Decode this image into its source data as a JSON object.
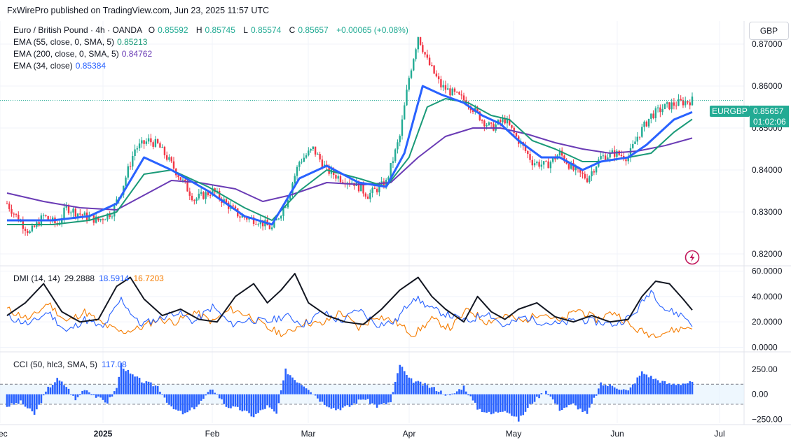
{
  "publisher": "FxWirePro published on TradingView.com, Jun 23, 2025 11:57 UTC",
  "currency": "GBP",
  "symbol_tag": "EURGBP",
  "last_price": "0.85657",
  "countdown": "01:02:06",
  "colors": {
    "up": "#22ab94",
    "down": "#f23645",
    "ema55": "#1a9a78",
    "ema200": "#6a3bb5",
    "ema34": "#2962ff",
    "adx": "#131722",
    "diplus": "#2962ff",
    "diminus": "#f57c00",
    "cci": "#2962ff",
    "grid": "#f0f3fa"
  },
  "legend": {
    "title": "Euro / British Pound · 4h · OANDA",
    "o_label": "O",
    "o": "0.85592",
    "h_label": "H",
    "h": "0.85745",
    "l_label": "L",
    "l": "0.85574",
    "c_label": "C",
    "c": "0.85657",
    "change": "+0.00065 (+0.08%)",
    "ema55_label": "EMA (55, close, 0, SMA, 5)",
    "ema55_val": "0.85213",
    "ema200_label": "EMA (200, close, 0, SMA, 5)",
    "ema200_val": "0.84762",
    "ema34_label": "EMA (34, close)",
    "ema34_val": "0.85384"
  },
  "dmi_legend": {
    "label": "DMI (14, 14)",
    "adx": "29.2888",
    "diplus": "18.5914",
    "diminus": "16.7203"
  },
  "cci_legend": {
    "label": "CCI (50, hlc3, SMA, 5)",
    "val": "117.08"
  },
  "chart_data": [
    {
      "type": "candlestick",
      "title": "Euro / British Pound · 4h · OANDA",
      "x_ticks": [
        "Dec",
        "2025",
        "Feb",
        "Mar",
        "Apr",
        "May",
        "Jun",
        "Jul"
      ],
      "y_ticks": [
        "0.87000",
        "0.86000",
        "0.85000",
        "0.84000",
        "0.83000",
        "0.82000"
      ],
      "ylim": [
        0.8175,
        0.8755
      ],
      "price_path": [
        [
          0,
          0.832
        ],
        [
          2,
          0.829
        ],
        [
          5,
          0.825
        ],
        [
          8,
          0.829
        ],
        [
          11,
          0.827
        ],
        [
          13,
          0.831
        ],
        [
          17,
          0.829
        ],
        [
          20,
          0.828
        ],
        [
          23,
          0.83
        ],
        [
          25,
          0.835
        ],
        [
          28,
          0.845
        ],
        [
          31,
          0.847
        ],
        [
          33,
          0.846
        ],
        [
          35,
          0.843
        ],
        [
          38,
          0.838
        ],
        [
          41,
          0.833
        ],
        [
          45,
          0.835
        ],
        [
          48,
          0.832
        ],
        [
          51,
          0.829
        ],
        [
          55,
          0.828
        ],
        [
          58,
          0.826
        ],
        [
          61,
          0.832
        ],
        [
          64,
          0.842
        ],
        [
          67,
          0.845
        ],
        [
          70,
          0.84
        ],
        [
          73,
          0.838
        ],
        [
          76,
          0.837
        ],
        [
          79,
          0.834
        ],
        [
          83,
          0.837
        ],
        [
          86,
          0.848
        ],
        [
          88,
          0.862
        ],
        [
          90,
          0.872
        ],
        [
          92,
          0.866
        ],
        [
          95,
          0.86
        ],
        [
          98,
          0.858
        ],
        [
          101,
          0.856
        ],
        [
          104,
          0.852
        ],
        [
          106,
          0.85
        ],
        [
          109,
          0.852
        ],
        [
          112,
          0.847
        ],
        [
          115,
          0.842
        ],
        [
          118,
          0.841
        ],
        [
          121,
          0.844
        ],
        [
          124,
          0.84
        ],
        [
          127,
          0.838
        ],
        [
          130,
          0.843
        ],
        [
          133,
          0.844
        ],
        [
          136,
          0.843
        ],
        [
          138,
          0.848
        ],
        [
          141,
          0.853
        ],
        [
          144,
          0.855
        ],
        [
          147,
          0.856
        ],
        [
          150,
          0.8566
        ]
      ],
      "ema34": [
        [
          0,
          0.828
        ],
        [
          10,
          0.828
        ],
        [
          18,
          0.829
        ],
        [
          24,
          0.832
        ],
        [
          30,
          0.843
        ],
        [
          36,
          0.84
        ],
        [
          44,
          0.835
        ],
        [
          52,
          0.829
        ],
        [
          58,
          0.827
        ],
        [
          64,
          0.838
        ],
        [
          70,
          0.841
        ],
        [
          77,
          0.837
        ],
        [
          83,
          0.836
        ],
        [
          87,
          0.844
        ],
        [
          91,
          0.86
        ],
        [
          95,
          0.858
        ],
        [
          100,
          0.856
        ],
        [
          104,
          0.853
        ],
        [
          108,
          0.851
        ],
        [
          112,
          0.847
        ],
        [
          117,
          0.843
        ],
        [
          121,
          0.843
        ],
        [
          126,
          0.84
        ],
        [
          130,
          0.842
        ],
        [
          136,
          0.843
        ],
        [
          140,
          0.846
        ],
        [
          146,
          0.852
        ],
        [
          150,
          0.8538
        ]
      ],
      "ema55": [
        [
          0,
          0.827
        ],
        [
          10,
          0.827
        ],
        [
          18,
          0.828
        ],
        [
          24,
          0.83
        ],
        [
          30,
          0.839
        ],
        [
          36,
          0.84
        ],
        [
          44,
          0.836
        ],
        [
          52,
          0.831
        ],
        [
          58,
          0.828
        ],
        [
          64,
          0.835
        ],
        [
          70,
          0.84
        ],
        [
          77,
          0.838
        ],
        [
          83,
          0.836
        ],
        [
          88,
          0.843
        ],
        [
          92,
          0.855
        ],
        [
          96,
          0.857
        ],
        [
          101,
          0.856
        ],
        [
          106,
          0.853
        ],
        [
          110,
          0.852
        ],
        [
          115,
          0.847
        ],
        [
          120,
          0.845
        ],
        [
          126,
          0.842
        ],
        [
          130,
          0.842
        ],
        [
          136,
          0.843
        ],
        [
          141,
          0.844
        ],
        [
          146,
          0.849
        ],
        [
          150,
          0.8521
        ]
      ],
      "ema200": [
        [
          0,
          0.8345
        ],
        [
          8,
          0.8325
        ],
        [
          16,
          0.831
        ],
        [
          24,
          0.8305
        ],
        [
          30,
          0.834
        ],
        [
          36,
          0.8375
        ],
        [
          42,
          0.837
        ],
        [
          50,
          0.8355
        ],
        [
          56,
          0.8325
        ],
        [
          62,
          0.834
        ],
        [
          70,
          0.837
        ],
        [
          78,
          0.8365
        ],
        [
          84,
          0.837
        ],
        [
          90,
          0.843
        ],
        [
          96,
          0.848
        ],
        [
          102,
          0.85
        ],
        [
          108,
          0.85
        ],
        [
          114,
          0.8485
        ],
        [
          120,
          0.8465
        ],
        [
          126,
          0.845
        ],
        [
          132,
          0.844
        ],
        [
          138,
          0.8445
        ],
        [
          144,
          0.8458
        ],
        [
          150,
          0.8476
        ]
      ]
    },
    {
      "type": "line",
      "title": "DMI (14, 14)",
      "y_ticks": [
        "60.0000",
        "40.0000",
        "20.0000",
        "0.0000"
      ],
      "ylim": [
        -3,
        63
      ],
      "series": [
        {
          "name": "ADX",
          "values": [
            [
              0,
              25
            ],
            [
              4,
              35
            ],
            [
              8,
              50
            ],
            [
              12,
              28
            ],
            [
              16,
              20
            ],
            [
              20,
              22
            ],
            [
              24,
              48
            ],
            [
              27,
              55
            ],
            [
              30,
              38
            ],
            [
              34,
              25
            ],
            [
              38,
              30
            ],
            [
              42,
              22
            ],
            [
              46,
              20
            ],
            [
              50,
              40
            ],
            [
              54,
              50
            ],
            [
              57,
              35
            ],
            [
              60,
              45
            ],
            [
              63,
              58
            ],
            [
              66,
              35
            ],
            [
              70,
              25
            ],
            [
              74,
              20
            ],
            [
              78,
              18
            ],
            [
              82,
              30
            ],
            [
              86,
              45
            ],
            [
              90,
              55
            ],
            [
              93,
              40
            ],
            [
              96,
              30
            ],
            [
              100,
              20
            ],
            [
              103,
              40
            ],
            [
              106,
              28
            ],
            [
              109,
              22
            ],
            [
              112,
              30
            ],
            [
              116,
              35
            ],
            [
              120,
              24
            ],
            [
              124,
              20
            ],
            [
              128,
              25
            ],
            [
              132,
              20
            ],
            [
              136,
              22
            ],
            [
              139,
              40
            ],
            [
              142,
              52
            ],
            [
              145,
              50
            ],
            [
              148,
              38
            ],
            [
              150,
              29.29
            ]
          ]
        },
        {
          "name": "DI+",
          "values": [
            [
              0,
              24
            ],
            [
              5,
              18
            ],
            [
              9,
              28
            ],
            [
              13,
              12
            ],
            [
              17,
              22
            ],
            [
              21,
              15
            ],
            [
              25,
              38
            ],
            [
              29,
              18
            ],
            [
              33,
              22
            ],
            [
              37,
              28
            ],
            [
              41,
              20
            ],
            [
              45,
              32
            ],
            [
              49,
              18
            ],
            [
              53,
              22
            ],
            [
              57,
              20
            ],
            [
              61,
              25
            ],
            [
              65,
              18
            ],
            [
              69,
              28
            ],
            [
              73,
              20
            ],
            [
              77,
              30
            ],
            [
              81,
              18
            ],
            [
              85,
              20
            ],
            [
              89,
              40
            ],
            [
              93,
              30
            ],
            [
              97,
              25
            ],
            [
              101,
              20
            ],
            [
              105,
              28
            ],
            [
              109,
              16
            ],
            [
              113,
              24
            ],
            [
              117,
              20
            ],
            [
              121,
              18
            ],
            [
              125,
              22
            ],
            [
              129,
              20
            ],
            [
              133,
              18
            ],
            [
              137,
              25
            ],
            [
              141,
              45
            ],
            [
              144,
              30
            ],
            [
              148,
              25
            ],
            [
              150,
              18.59
            ]
          ]
        },
        {
          "name": "DI-",
          "values": [
            [
              0,
              30
            ],
            [
              5,
              22
            ],
            [
              9,
              35
            ],
            [
              13,
              20
            ],
            [
              17,
              28
            ],
            [
              21,
              18
            ],
            [
              25,
              12
            ],
            [
              29,
              15
            ],
            [
              33,
              22
            ],
            [
              37,
              20
            ],
            [
              41,
              28
            ],
            [
              45,
              20
            ],
            [
              49,
              30
            ],
            [
              53,
              25
            ],
            [
              57,
              15
            ],
            [
              61,
              10
            ],
            [
              65,
              20
            ],
            [
              69,
              18
            ],
            [
              73,
              28
            ],
            [
              77,
              15
            ],
            [
              81,
              25
            ],
            [
              85,
              20
            ],
            [
              89,
              10
            ],
            [
              93,
              22
            ],
            [
              97,
              15
            ],
            [
              101,
              30
            ],
            [
              105,
              20
            ],
            [
              109,
              25
            ],
            [
              113,
              20
            ],
            [
              117,
              28
            ],
            [
              121,
              20
            ],
            [
              125,
              30
            ],
            [
              129,
              22
            ],
            [
              133,
              28
            ],
            [
              137,
              15
            ],
            [
              141,
              10
            ],
            [
              144,
              12
            ],
            [
              148,
              15
            ],
            [
              150,
              16.72
            ]
          ]
        }
      ]
    },
    {
      "type": "bar",
      "title": "CCI (50, hlc3, SMA, 5)",
      "y_ticks": [
        "250.00",
        "0.00",
        "−250.00"
      ],
      "ylim": [
        -290,
        410
      ],
      "band": [
        -100,
        100
      ],
      "values_path": [
        [
          0,
          -120
        ],
        [
          3,
          -80
        ],
        [
          6,
          -200
        ],
        [
          9,
          60
        ],
        [
          11,
          150
        ],
        [
          13,
          80
        ],
        [
          15,
          -60
        ],
        [
          17,
          60
        ],
        [
          20,
          -40
        ],
        [
          22,
          -80
        ],
        [
          24,
          60
        ],
        [
          25,
          300
        ],
        [
          27,
          200
        ],
        [
          30,
          120
        ],
        [
          33,
          80
        ],
        [
          36,
          -140
        ],
        [
          39,
          -200
        ],
        [
          42,
          -100
        ],
        [
          45,
          60
        ],
        [
          48,
          -120
        ],
        [
          51,
          -150
        ],
        [
          54,
          -220
        ],
        [
          57,
          -120
        ],
        [
          59,
          -200
        ],
        [
          61,
          240
        ],
        [
          63,
          150
        ],
        [
          66,
          60
        ],
        [
          69,
          -80
        ],
        [
          72,
          -150
        ],
        [
          75,
          -120
        ],
        [
          78,
          -40
        ],
        [
          81,
          -120
        ],
        [
          84,
          -80
        ],
        [
          86,
          300
        ],
        [
          88,
          150
        ],
        [
          91,
          100
        ],
        [
          94,
          50
        ],
        [
          97,
          -20
        ],
        [
          100,
          80
        ],
        [
          103,
          -140
        ],
        [
          106,
          -200
        ],
        [
          109,
          -150
        ],
        [
          112,
          -260
        ],
        [
          115,
          -80
        ],
        [
          118,
          40
        ],
        [
          121,
          -150
        ],
        [
          124,
          -100
        ],
        [
          127,
          -200
        ],
        [
          130,
          100
        ],
        [
          133,
          80
        ],
        [
          136,
          30
        ],
        [
          139,
          220
        ],
        [
          142,
          150
        ],
        [
          145,
          100
        ],
        [
          148,
          110
        ],
        [
          150,
          117
        ]
      ]
    }
  ]
}
